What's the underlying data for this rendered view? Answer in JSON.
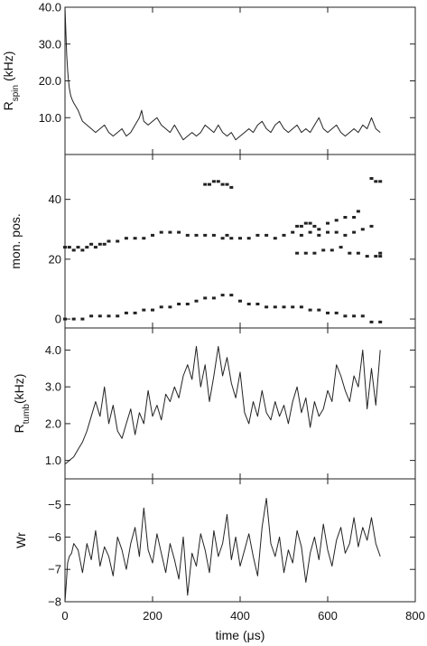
{
  "chart_data": {
    "type": "line",
    "xlabel": "time (μs)",
    "xlim": [
      0,
      800
    ],
    "xticks": [
      0,
      200,
      400,
      600,
      800
    ],
    "xtick_labels": [
      "0",
      "200",
      "400",
      "600",
      "800"
    ],
    "line_color": "#222222",
    "panels": [
      {
        "id": "rspin",
        "type": "line",
        "ylabel_main": "R",
        "ylabel_sub": "spin",
        "ylabel_unit": " (kHz)",
        "ylim": [
          0,
          40
        ],
        "yticks": [
          10,
          20,
          30,
          40
        ],
        "ytick_labels": [
          "10.0",
          "20.0",
          "30.0",
          "40.0"
        ],
        "series": [
          {
            "x": [
              0,
              2,
              4,
              6,
              8,
              10,
              13,
              16,
              20,
              25,
              30,
              40,
              50,
              60,
              70,
              80,
              90,
              100,
              110,
              120,
              130,
              140,
              150,
              160,
              170,
              175,
              180,
              190,
              200,
              210,
              220,
              230,
              240,
              250,
              260,
              270,
              280,
              290,
              300,
              310,
              320,
              330,
              340,
              350,
              360,
              370,
              380,
              390,
              400,
              410,
              420,
              430,
              440,
              450,
              460,
              470,
              480,
              490,
              500,
              510,
              520,
              530,
              540,
              550,
              560,
              570,
              580,
              590,
              600,
              610,
              620,
              630,
              640,
              650,
              660,
              670,
              680,
              690,
              700,
              710,
              720
            ],
            "y": [
              40,
              33,
              27,
              23,
              20,
              18,
              16,
              15,
              14,
              13,
              12,
              9,
              8,
              7,
              6,
              7,
              8,
              6,
              5,
              6,
              7,
              5,
              6,
              8,
              10,
              12,
              9,
              8,
              9,
              10,
              8,
              7,
              6,
              8,
              6,
              4,
              5,
              6,
              5,
              6,
              8,
              7,
              6,
              8,
              6,
              5,
              6,
              4,
              5,
              6,
              7,
              6,
              8,
              9,
              7,
              6,
              8,
              9,
              7,
              6,
              7,
              8,
              6,
              7,
              6,
              8,
              10,
              7,
              6,
              7,
              8,
              6,
              5,
              6,
              7,
              6,
              8,
              7,
              10,
              7,
              6
            ]
          }
        ]
      },
      {
        "id": "monpos",
        "type": "scatter",
        "ylabel": "mon. pos.",
        "ylim": [
          -3,
          55
        ],
        "yticks": [
          0,
          20,
          40
        ],
        "ytick_labels": [
          "0",
          "20",
          "40"
        ],
        "series": [
          {
            "x": [
              0,
              10,
              20,
              30,
              40,
              50,
              60,
              70,
              80,
              90,
              100,
              120,
              140,
              160,
              180,
              200,
              220,
              240,
              260,
              280,
              300,
              320,
              340,
              360,
              370,
              380,
              400,
              420,
              440,
              460,
              480,
              500,
              520,
              540,
              560,
              580,
              600,
              620,
              640,
              660,
              680,
              700,
              720
            ],
            "y": [
              24,
              24,
              23,
              24,
              23,
              24,
              25,
              24,
              25,
              25,
              26,
              26,
              27,
              27,
              27,
              28,
              29,
              29,
              29,
              28,
              28,
              28,
              28,
              27,
              28,
              27,
              27,
              27,
              28,
              28,
              27,
              28,
              29,
              28,
              29,
              28,
              29,
              29,
              28,
              29,
              30,
              31,
              22
            ]
          },
          {
            "x": [
              0,
              20,
              40,
              60,
              80,
              100,
              120,
              140,
              160,
              180,
              200,
              220,
              240,
              260,
              280,
              300,
              320,
              340,
              360,
              380,
              400,
              420,
              440,
              460,
              480,
              500,
              520,
              540,
              560,
              580,
              600,
              620,
              640,
              660,
              680,
              700,
              720
            ],
            "y": [
              0,
              0,
              0,
              1,
              1,
              1,
              1,
              2,
              2,
              3,
              3,
              4,
              4,
              5,
              5,
              6,
              7,
              7,
              8,
              8,
              6,
              5,
              5,
              4,
              4,
              4,
              4,
              4,
              3,
              3,
              2,
              2,
              1,
              1,
              1,
              -1,
              -1
            ]
          },
          {
            "x": [
              530,
              550,
              570,
              590,
              610,
              630,
              650,
              670,
              690,
              710,
              720
            ],
            "y": [
              22,
              22,
              22,
              23,
              23,
              24,
              22,
              22,
              21,
              21,
              21
            ]
          },
          {
            "x": [
              530,
              540,
              550,
              560,
              570,
              580,
              600,
              620,
              640,
              660,
              670
            ],
            "y": [
              31,
              31,
              32,
              32,
              31,
              30,
              32,
              33,
              34,
              34,
              36
            ]
          },
          {
            "x": [
              320,
              330,
              340,
              350,
              360,
              370,
              380
            ],
            "y": [
              45,
              45,
              46,
              46,
              45,
              45,
              44
            ]
          },
          {
            "x": [
              700,
              710,
              720
            ],
            "y": [
              47,
              46,
              46
            ]
          }
        ]
      },
      {
        "id": "rtumb",
        "type": "line",
        "ylabel_main": "R",
        "ylabel_sub": "tumb",
        "ylabel_unit": "(kHz)",
        "ylim": [
          0.5,
          4.6
        ],
        "yticks": [
          1.0,
          2.0,
          3.0,
          4.0
        ],
        "ytick_labels": [
          "1.0",
          "2.0",
          "3.0",
          "4.0"
        ],
        "series": [
          {
            "x": [
              0,
              5,
              10,
              15,
              20,
              25,
              30,
              40,
              50,
              60,
              70,
              80,
              90,
              100,
              110,
              120,
              130,
              140,
              150,
              160,
              170,
              180,
              190,
              200,
              210,
              220,
              230,
              240,
              250,
              260,
              270,
              280,
              290,
              300,
              310,
              320,
              330,
              340,
              350,
              360,
              370,
              380,
              390,
              400,
              410,
              420,
              430,
              440,
              450,
              460,
              470,
              480,
              490,
              500,
              510,
              520,
              530,
              540,
              550,
              560,
              570,
              580,
              590,
              600,
              610,
              620,
              630,
              640,
              650,
              660,
              670,
              680,
              690,
              700,
              710,
              720
            ],
            "y": [
              0.9,
              0.95,
              1.0,
              1.05,
              1.1,
              1.2,
              1.3,
              1.5,
              1.8,
              2.2,
              2.6,
              2.2,
              3.0,
              2.0,
              2.5,
              1.8,
              1.6,
              2.0,
              2.4,
              1.7,
              2.3,
              2.0,
              2.9,
              2.2,
              2.5,
              2.1,
              2.8,
              2.6,
              3.0,
              2.7,
              3.3,
              3.6,
              3.2,
              4.1,
              3.0,
              3.6,
              2.6,
              3.3,
              4.1,
              3.3,
              3.8,
              3.1,
              2.7,
              3.4,
              2.3,
              2.0,
              2.6,
              2.2,
              2.9,
              2.3,
              2.1,
              2.6,
              2.2,
              2.5,
              2.0,
              2.6,
              3.0,
              2.3,
              2.7,
              1.9,
              2.6,
              2.2,
              2.4,
              2.9,
              2.6,
              3.6,
              3.3,
              2.9,
              2.6,
              3.3,
              3.0,
              4.0,
              2.4,
              3.5,
              2.5,
              4.0
            ]
          }
        ]
      },
      {
        "id": "wr",
        "type": "line",
        "ylabel": "Wr",
        "ylim": [
          -8,
          -4.2
        ],
        "yticks": [
          -8,
          -7,
          -6,
          -5
        ],
        "ytick_labels": [
          "−8",
          "−7",
          "−6",
          "−5"
        ],
        "series": [
          {
            "x": [
              0,
              3,
              6,
              10,
              15,
              20,
              30,
              40,
              50,
              60,
              70,
              80,
              90,
              100,
              110,
              120,
              130,
              140,
              150,
              160,
              170,
              180,
              190,
              200,
              210,
              220,
              230,
              240,
              250,
              260,
              270,
              280,
              290,
              300,
              310,
              320,
              330,
              340,
              350,
              360,
              370,
              380,
              390,
              400,
              410,
              420,
              430,
              440,
              450,
              460,
              470,
              480,
              490,
              500,
              510,
              520,
              530,
              540,
              550,
              560,
              570,
              580,
              590,
              600,
              610,
              620,
              630,
              640,
              650,
              660,
              670,
              680,
              690,
              700,
              710,
              720
            ],
            "y": [
              -8.0,
              -7.4,
              -6.8,
              -6.6,
              -6.5,
              -6.2,
              -6.4,
              -7.1,
              -6.2,
              -6.7,
              -5.8,
              -6.9,
              -6.3,
              -6.6,
              -7.2,
              -6.0,
              -6.4,
              -7.0,
              -6.2,
              -5.7,
              -6.6,
              -5.1,
              -6.4,
              -6.8,
              -5.9,
              -6.5,
              -7.1,
              -6.2,
              -6.7,
              -7.3,
              -6.0,
              -7.8,
              -6.5,
              -6.9,
              -5.9,
              -6.4,
              -7.1,
              -5.8,
              -6.6,
              -6.2,
              -5.3,
              -6.7,
              -6.0,
              -6.9,
              -6.4,
              -5.9,
              -6.6,
              -7.2,
              -5.7,
              -4.8,
              -6.2,
              -6.6,
              -6.0,
              -7.1,
              -6.4,
              -6.8,
              -5.8,
              -6.3,
              -7.4,
              -6.5,
              -6.0,
              -6.7,
              -5.6,
              -6.4,
              -6.9,
              -6.1,
              -5.7,
              -6.5,
              -6.2,
              -5.4,
              -6.3,
              -5.7,
              -6.1,
              -5.4,
              -6.2,
              -6.6
            ]
          }
        ]
      }
    ]
  }
}
